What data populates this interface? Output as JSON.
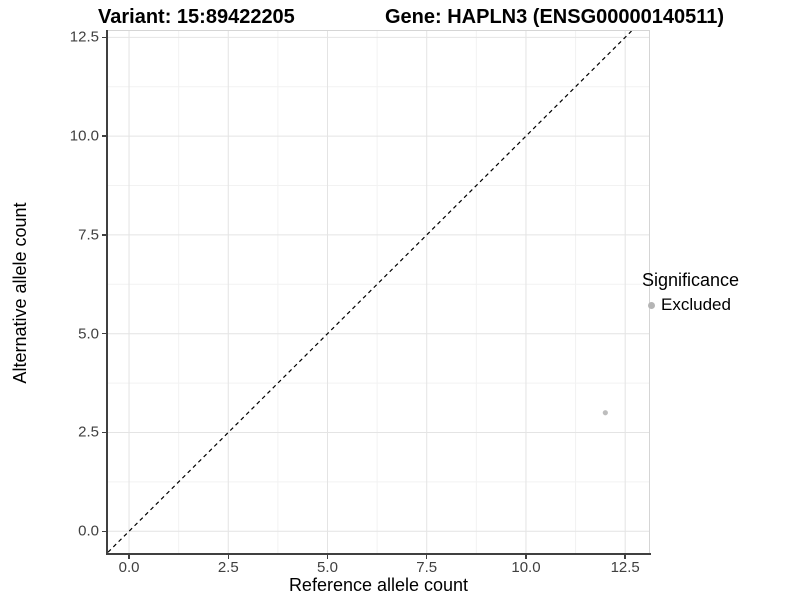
{
  "title": {
    "left": "Variant: 15:89422205",
    "right": "Gene: HAPLN3 (ENSG00000140511)"
  },
  "axes": {
    "x": {
      "label": "Reference allele count",
      "tick_labels": [
        "0.0",
        "2.5",
        "5.0",
        "7.5",
        "10.0",
        "12.5"
      ]
    },
    "y": {
      "label": "Alternative allele count",
      "tick_labels": [
        "0.0",
        "2.5",
        "5.0",
        "7.5",
        "10.0",
        "12.5"
      ]
    }
  },
  "legend": {
    "title": "Significance",
    "items": [
      {
        "label": "Excluded",
        "color": "#b5b5b5"
      }
    ]
  },
  "chart_data": {
    "type": "scatter",
    "title": "Variant: 15:89422205   Gene: HAPLN3 (ENSG00000140511)",
    "xlabel": "Reference allele count",
    "ylabel": "Alternative allele count",
    "xlim": [
      -0.53,
      13.1
    ],
    "ylim": [
      -0.55,
      12.66
    ],
    "x_ticks": [
      0,
      2.5,
      5,
      7.5,
      10,
      12.5
    ],
    "y_ticks": [
      0,
      2.5,
      5,
      7.5,
      10,
      12.5
    ],
    "x_minor_ticks": [
      1.25,
      3.75,
      6.25,
      8.75,
      11.25
    ],
    "y_minor_ticks": [
      1.25,
      3.75,
      6.25,
      8.75,
      11.25
    ],
    "grid": true,
    "legend_position": "right",
    "series": [
      {
        "name": "Excluded",
        "points": [
          {
            "x": 12,
            "y": 3
          }
        ],
        "color": "#bdbdbd",
        "marker_radius": 2.6
      }
    ],
    "reference_line": {
      "type": "identity",
      "style": "dashed",
      "color": "#000000",
      "dash": "4,3.5"
    }
  },
  "colors": {
    "grid_major": "#e4e4e4",
    "grid_minor": "#f2f2f2",
    "axis_line": "#404040",
    "tick_text": "#404040",
    "panel_border": "#d5d5d5",
    "background": "#ffffff"
  }
}
